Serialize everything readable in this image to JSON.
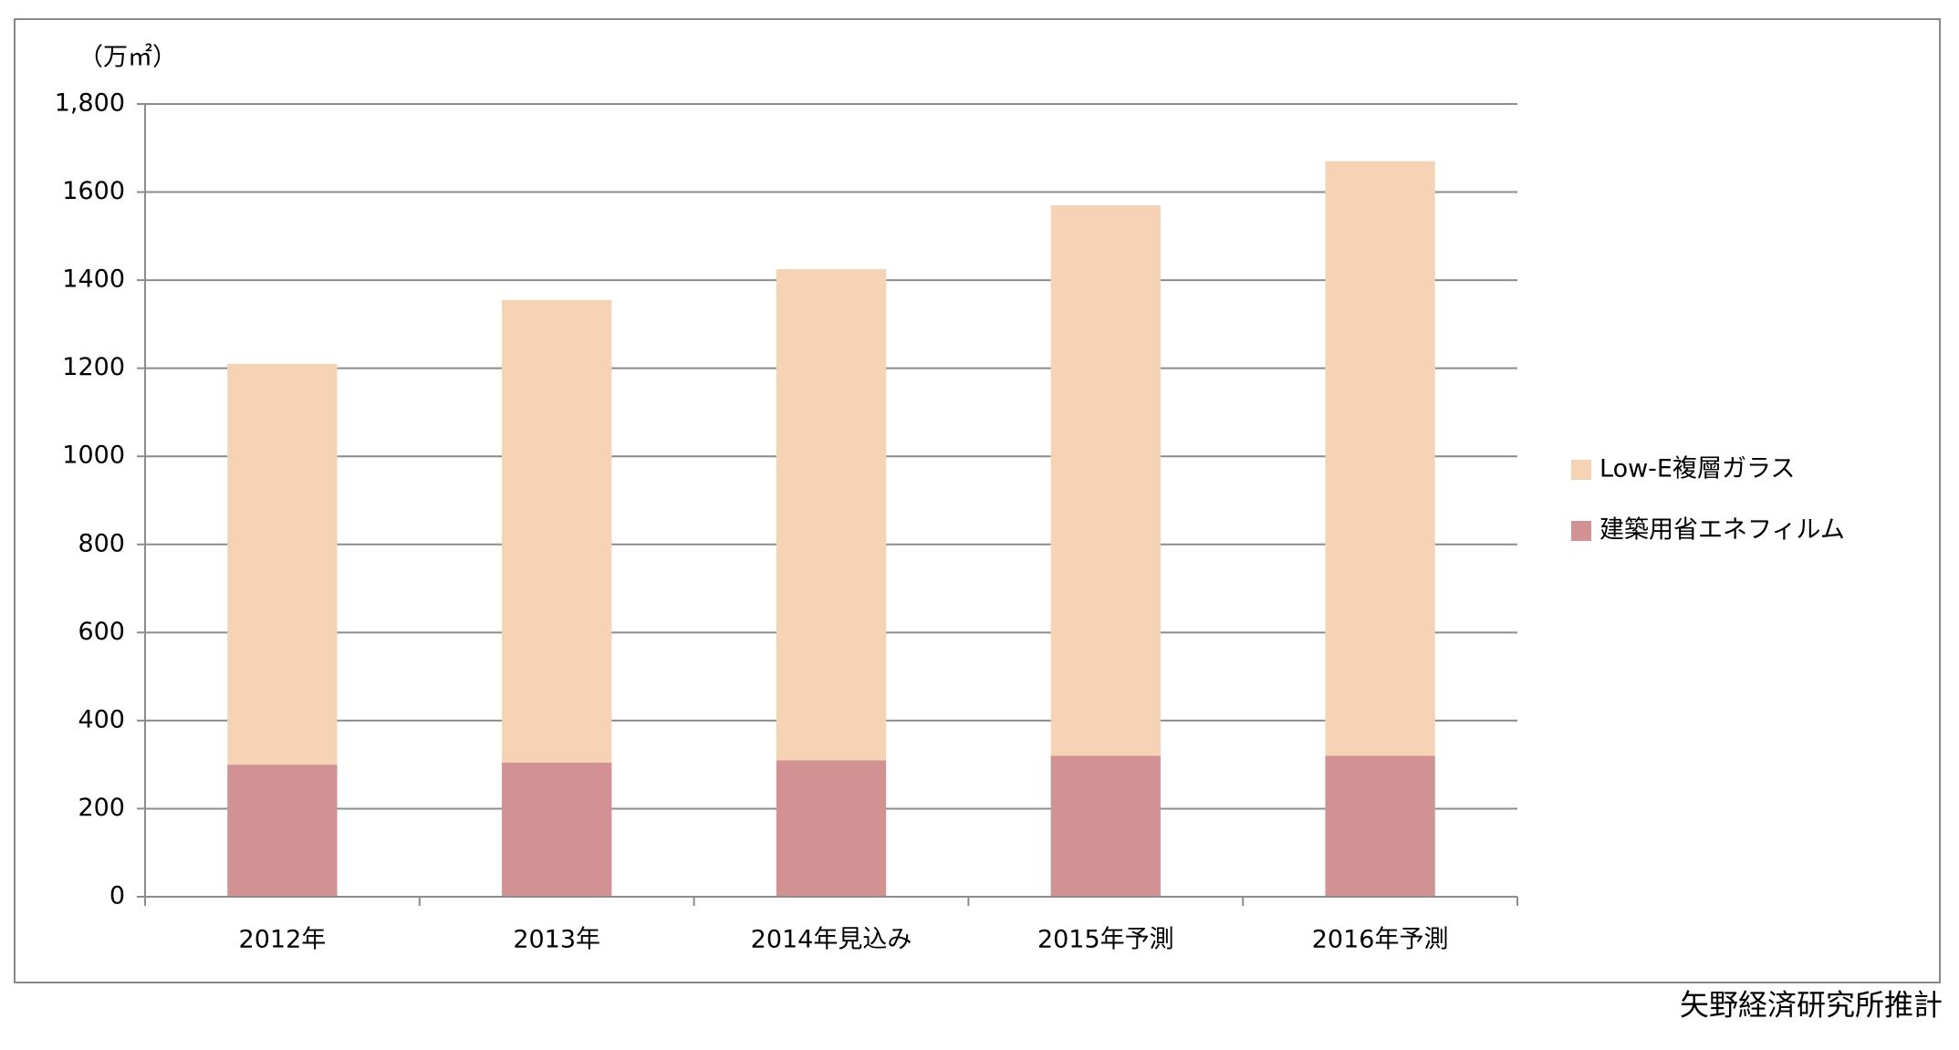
{
  "chart_data": {
    "type": "stacked-bar",
    "y_label": "（万㎡）",
    "source": "矢野経済研究所推計",
    "categories": [
      "2012年",
      "2013年",
      "2014年見込み",
      "2015年予測",
      "2016年予測"
    ],
    "series": [
      {
        "name": "建築用省エネフィルム",
        "color": "#d29293",
        "values": [
          300,
          305,
          310,
          320,
          320
        ]
      },
      {
        "name": "Low-E複層ガラス",
        "color": "#f7d3b5",
        "values": [
          910,
          1050,
          1115,
          1250,
          1350
        ]
      }
    ],
    "ylim": [
      0,
      1800
    ],
    "yticks": [
      0,
      200,
      400,
      600,
      800,
      1000,
      1200,
      1400,
      1600,
      {
        "value": 1800,
        "label": "1,800"
      }
    ],
    "grid": true
  }
}
